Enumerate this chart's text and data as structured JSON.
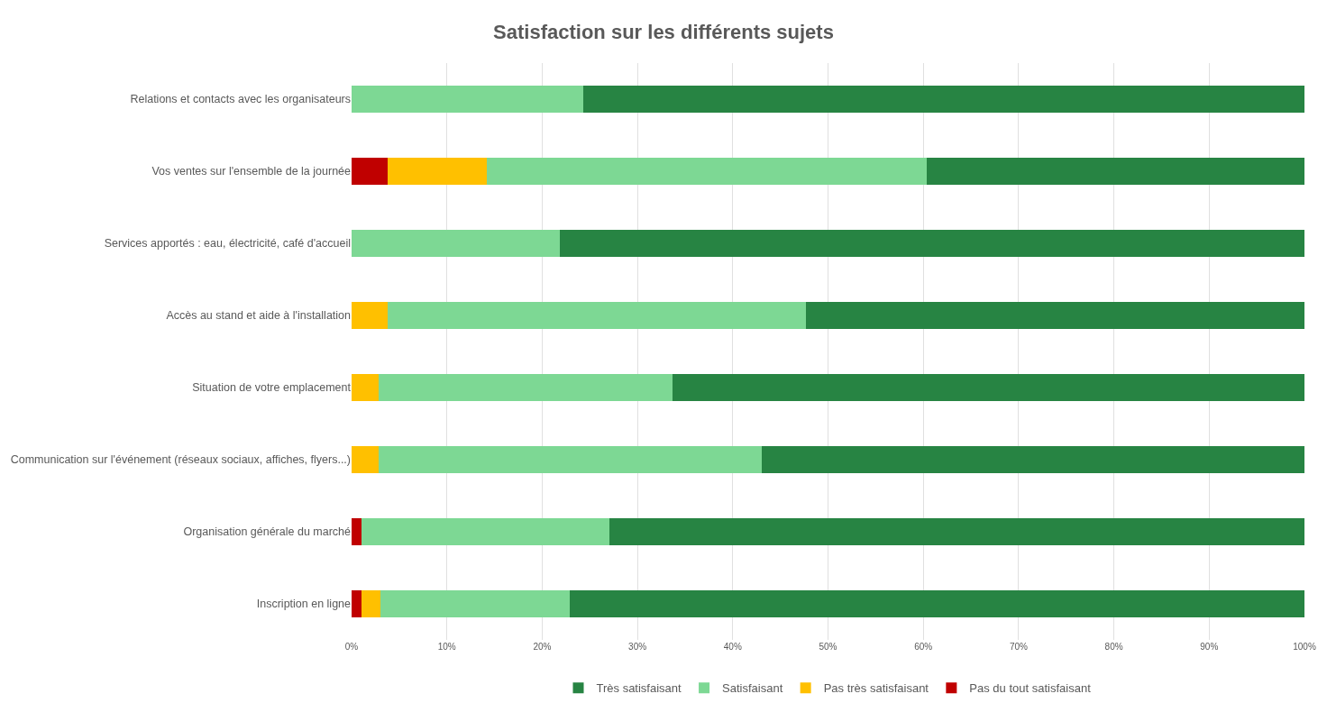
{
  "chart_data": {
    "type": "bar",
    "orientation": "horizontal",
    "stacked": true,
    "title": "Satisfaction sur les différents sujets",
    "categories": [
      "Relations et contacts avec les organisateurs",
      "Vos ventes sur l'ensemble de la journée",
      "Services apportés : eau, électricité, café d'accueil",
      "Accès au stand et aide à l'installation",
      "Situation de votre emplacement",
      "Communication sur l'événement (réseaux sociaux, affiches, flyers...)",
      "Organisation générale du marché",
      "Inscription en ligne"
    ],
    "series": [
      {
        "name": "Pas du tout satisfaisant",
        "color": "#c00000",
        "values": [
          0,
          3.8,
          0,
          0,
          0,
          0,
          1.0,
          1.0
        ]
      },
      {
        "name": "Pas très satisfaisant",
        "color": "#ffc000",
        "values": [
          0,
          10.4,
          0,
          3.8,
          2.8,
          2.8,
          0,
          2.0
        ]
      },
      {
        "name": "Satisfaisant",
        "color": "#7dd894",
        "values": [
          24.3,
          46.2,
          21.9,
          43.9,
          30.9,
          40.2,
          26.1,
          19.9
        ]
      },
      {
        "name": "Très satisfaisant",
        "color": "#278443",
        "values": [
          75.7,
          39.6,
          78.1,
          52.3,
          66.3,
          57.0,
          72.9,
          77.1
        ]
      }
    ],
    "xlim": [
      0,
      100
    ],
    "xticks": [
      {
        "value": 0,
        "label": "0%"
      },
      {
        "value": 10,
        "label": "10%"
      },
      {
        "value": 20,
        "label": "20%"
      },
      {
        "value": 30,
        "label": "30%"
      },
      {
        "value": 40,
        "label": "40%"
      },
      {
        "value": 50,
        "label": "50%"
      },
      {
        "value": 60,
        "label": "60%"
      },
      {
        "value": 70,
        "label": "70%"
      },
      {
        "value": 80,
        "label": "80%"
      },
      {
        "value": 90,
        "label": "90%"
      },
      {
        "value": 100,
        "label": "100%"
      }
    ],
    "grid": "x",
    "legend": "bottom"
  }
}
